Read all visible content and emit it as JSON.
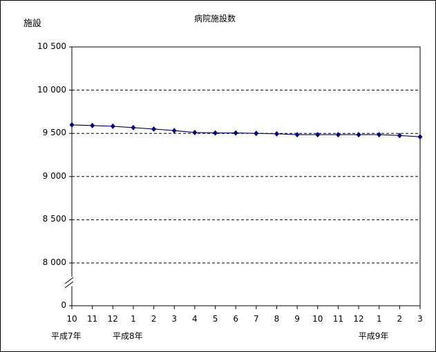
{
  "chart_data": {
    "type": "line",
    "title": "病院施設数",
    "ylabel": "施設",
    "categories": [
      "10",
      "11",
      "12",
      "1",
      "2",
      "3",
      "4",
      "5",
      "6",
      "7",
      "8",
      "9",
      "10",
      "11",
      "12",
      "1",
      "2",
      "3"
    ],
    "year_labels": [
      {
        "index": 0,
        "label": "平成7年"
      },
      {
        "index": 3,
        "label": "平成8年"
      },
      {
        "index": 15,
        "label": "平成9年"
      }
    ],
    "series": [
      {
        "values": [
          9598,
          9590,
          9582,
          9566,
          9550,
          9532,
          9510,
          9505,
          9505,
          9500,
          9495,
          9485,
          9485,
          9485,
          9485,
          9485,
          9475,
          9460
        ],
        "color": "#000080"
      }
    ],
    "yticks": [
      "10 500",
      "10 000",
      "9 500",
      "9 000",
      "8 500",
      "8 000",
      "0"
    ],
    "ytick_values": [
      10500,
      10000,
      9500,
      9000,
      8500,
      8000,
      0
    ],
    "ylim": [
      8000,
      10500
    ],
    "axis_break": true,
    "grid": "horizontal dashed"
  }
}
